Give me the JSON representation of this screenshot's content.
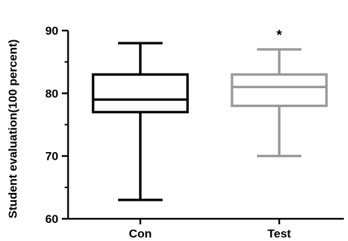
{
  "chart_data": {
    "type": "box",
    "title": "",
    "xlabel": "",
    "ylabel": "Student evaluation(100 percent)",
    "ylim": [
      60,
      90
    ],
    "yticks": [
      60,
      70,
      80,
      90
    ],
    "categories": [
      "Con",
      "Test"
    ],
    "series": [
      {
        "category": "Con",
        "min": 63,
        "q1": 77,
        "median": 79,
        "q3": 83,
        "max": 88,
        "color": "#000000"
      },
      {
        "category": "Test",
        "min": 70,
        "q1": 78,
        "median": 81,
        "q3": 83,
        "max": 87,
        "color": "#999999"
      }
    ],
    "annotations": [
      {
        "category": "Test",
        "text": "*",
        "color": "#000000"
      }
    ],
    "grid": false
  }
}
